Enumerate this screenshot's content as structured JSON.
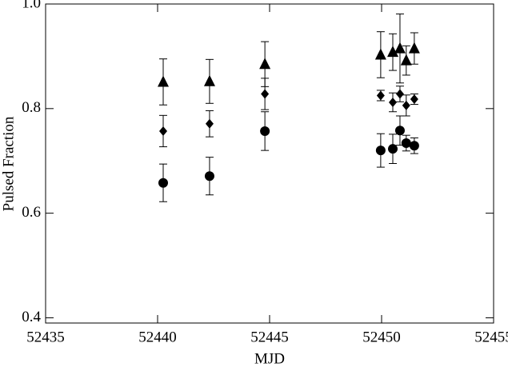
{
  "chart_data": {
    "type": "scatter",
    "xlabel": "MJD",
    "ylabel": "Pulsed Fraction",
    "x": [
      52440.25,
      52442.32,
      52444.79,
      52449.96,
      52450.5,
      52450.82,
      52451.1,
      52451.46
    ],
    "series": [
      {
        "color": "#000000",
        "marker": "triangle",
        "values": [
          0.851,
          0.852,
          0.885,
          0.903,
          0.908,
          0.915,
          0.892,
          0.915
        ],
        "errors": [
          0.044,
          0.042,
          0.043,
          0.044,
          0.035,
          0.066,
          0.028,
          0.03
        ]
      },
      {
        "color": "#000000",
        "marker": "diamond",
        "values": [
          0.757,
          0.771,
          0.828,
          0.825,
          0.812,
          0.828,
          0.806,
          0.818
        ],
        "errors": [
          0.03,
          0.025,
          0.03,
          0.01,
          0.018,
          0.015,
          0.02,
          0.01
        ]
      },
      {
        "color": "#000000",
        "marker": "circle",
        "values": [
          0.658,
          0.671,
          0.757,
          0.72,
          0.723,
          0.758,
          0.734,
          0.729
        ],
        "errors": [
          0.036,
          0.036,
          0.037,
          0.032,
          0.028,
          0.028,
          0.015,
          0.015
        ]
      }
    ],
    "xlim": [
      52435,
      52455
    ],
    "xticks": [
      52435,
      52440,
      52445,
      52450,
      52455
    ],
    "ylim": [
      0.39,
      1.0
    ],
    "yticks": [
      0.4,
      0.6,
      0.8,
      {
        "value": 1.0,
        "label": "1.0"
      }
    ],
    "grid": false
  }
}
